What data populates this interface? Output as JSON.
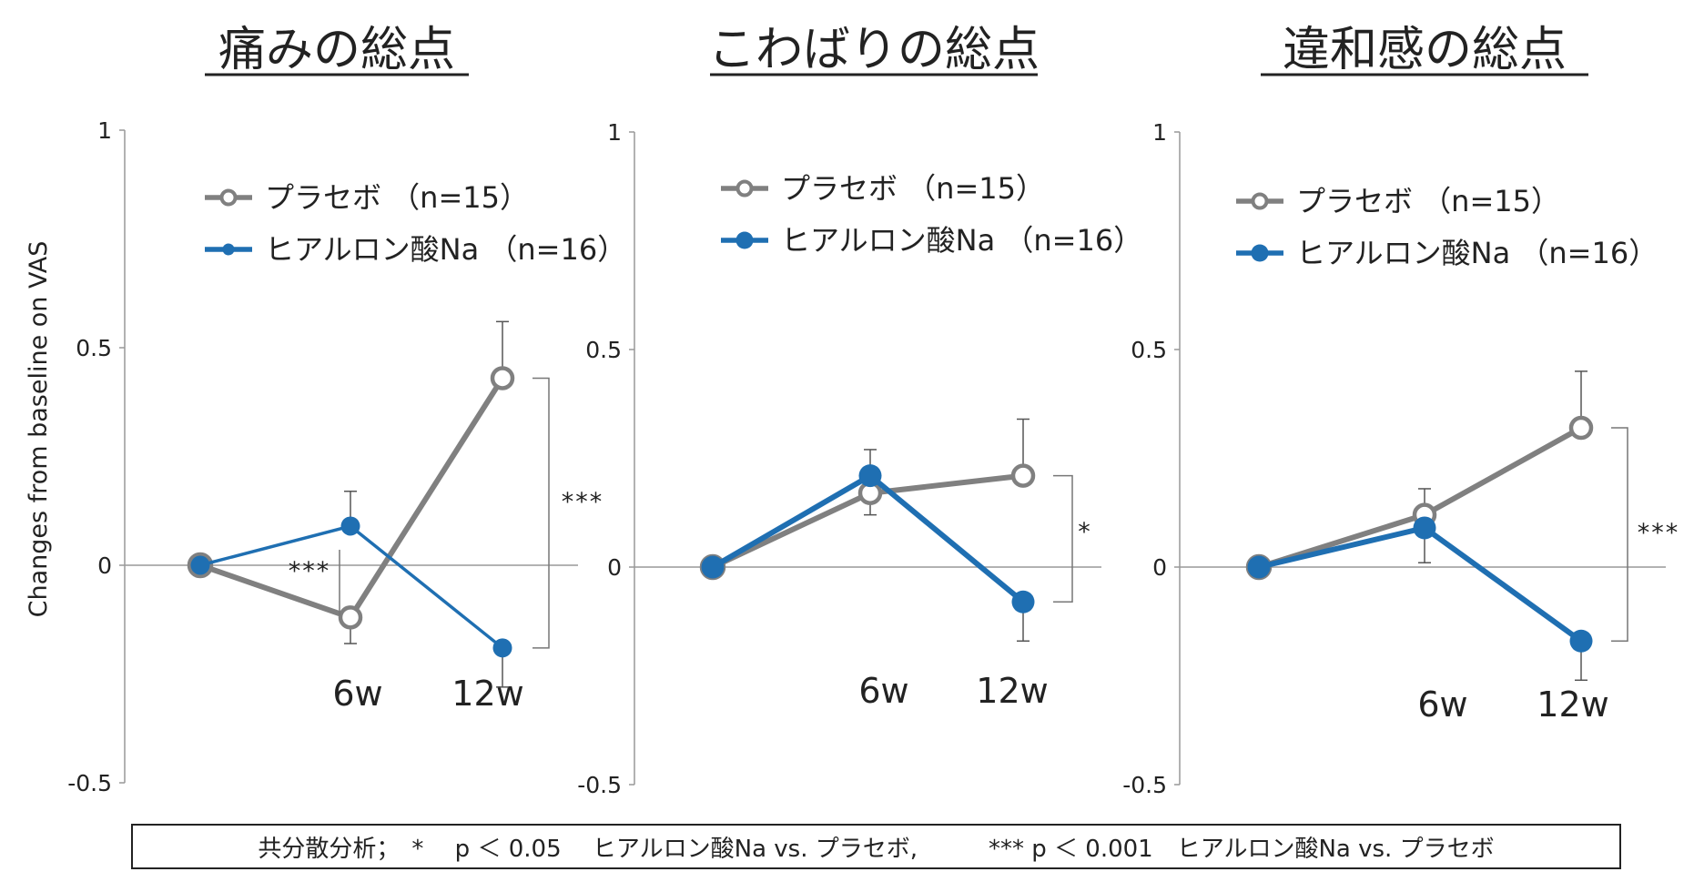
{
  "chart_data": [
    {
      "type": "line",
      "title": "痛みの総点",
      "ylabel": "Changes from baseline on VAS",
      "yticks": [
        "1",
        "0.5",
        "0",
        "-0.5"
      ],
      "ylim": [
        -0.5,
        1
      ],
      "x_labels": [
        "",
        "6w",
        "12w"
      ],
      "series": [
        {
          "name": "プラセボ （n=15）",
          "color": "#808080",
          "marker": "open-circle",
          "values": [
            0,
            -0.12,
            0.43
          ],
          "error": [
            0,
            0.06,
            0.13
          ]
        },
        {
          "name": "ヒアルロン酸Na （n=16）",
          "color": "#1f6fb2",
          "marker": "filled-circle",
          "values": [
            0,
            0.09,
            -0.19
          ],
          "error": [
            0,
            0.08,
            0.09
          ]
        }
      ],
      "annotations": [
        {
          "text": "***",
          "at_index": 1
        },
        {
          "text": "***",
          "at_index": 2
        }
      ]
    },
    {
      "type": "line",
      "title": "こわばりの総点",
      "ylabel": "",
      "yticks": [
        "1",
        "0.5",
        "0",
        "-0.5"
      ],
      "ylim": [
        -0.5,
        1
      ],
      "x_labels": [
        "",
        "6w",
        "12w"
      ],
      "series": [
        {
          "name": "プラセボ （n=15）",
          "color": "#808080",
          "marker": "open-circle",
          "values": [
            0,
            0.17,
            0.21
          ],
          "error": [
            0,
            0.05,
            0.13
          ]
        },
        {
          "name": "ヒアルロン酸Na （n=16）",
          "color": "#1f6fb2",
          "marker": "filled-circle",
          "values": [
            0,
            0.21,
            -0.08
          ],
          "error": [
            0,
            0.06,
            0.09
          ]
        }
      ],
      "annotations": [
        {
          "text": "*",
          "at_index": 2
        }
      ]
    },
    {
      "type": "line",
      "title": "違和感の総点",
      "ylabel": "",
      "yticks": [
        "1",
        "0.5",
        "0",
        "-0.5"
      ],
      "ylim": [
        -0.5,
        1
      ],
      "x_labels": [
        "",
        "6w",
        "12w"
      ],
      "series": [
        {
          "name": "プラセボ （n=15）",
          "color": "#808080",
          "marker": "open-circle",
          "values": [
            0,
            0.12,
            0.32
          ],
          "error": [
            0,
            0.06,
            0.13
          ]
        },
        {
          "name": "ヒアルロン酸Na （n=16）",
          "color": "#1f6fb2",
          "marker": "filled-circle",
          "values": [
            0,
            0.09,
            -0.17
          ],
          "error": [
            0,
            0.08,
            0.09
          ]
        }
      ],
      "annotations": [
        {
          "text": "***",
          "at_index": 2
        }
      ]
    }
  ],
  "footnote": "共分散分析；　*　 p ＜ 0.05　 ヒアルロン酸Na vs. プラセボ,　　　*** p ＜ 0.001　ヒアルロン酸Na vs. プラセボ"
}
